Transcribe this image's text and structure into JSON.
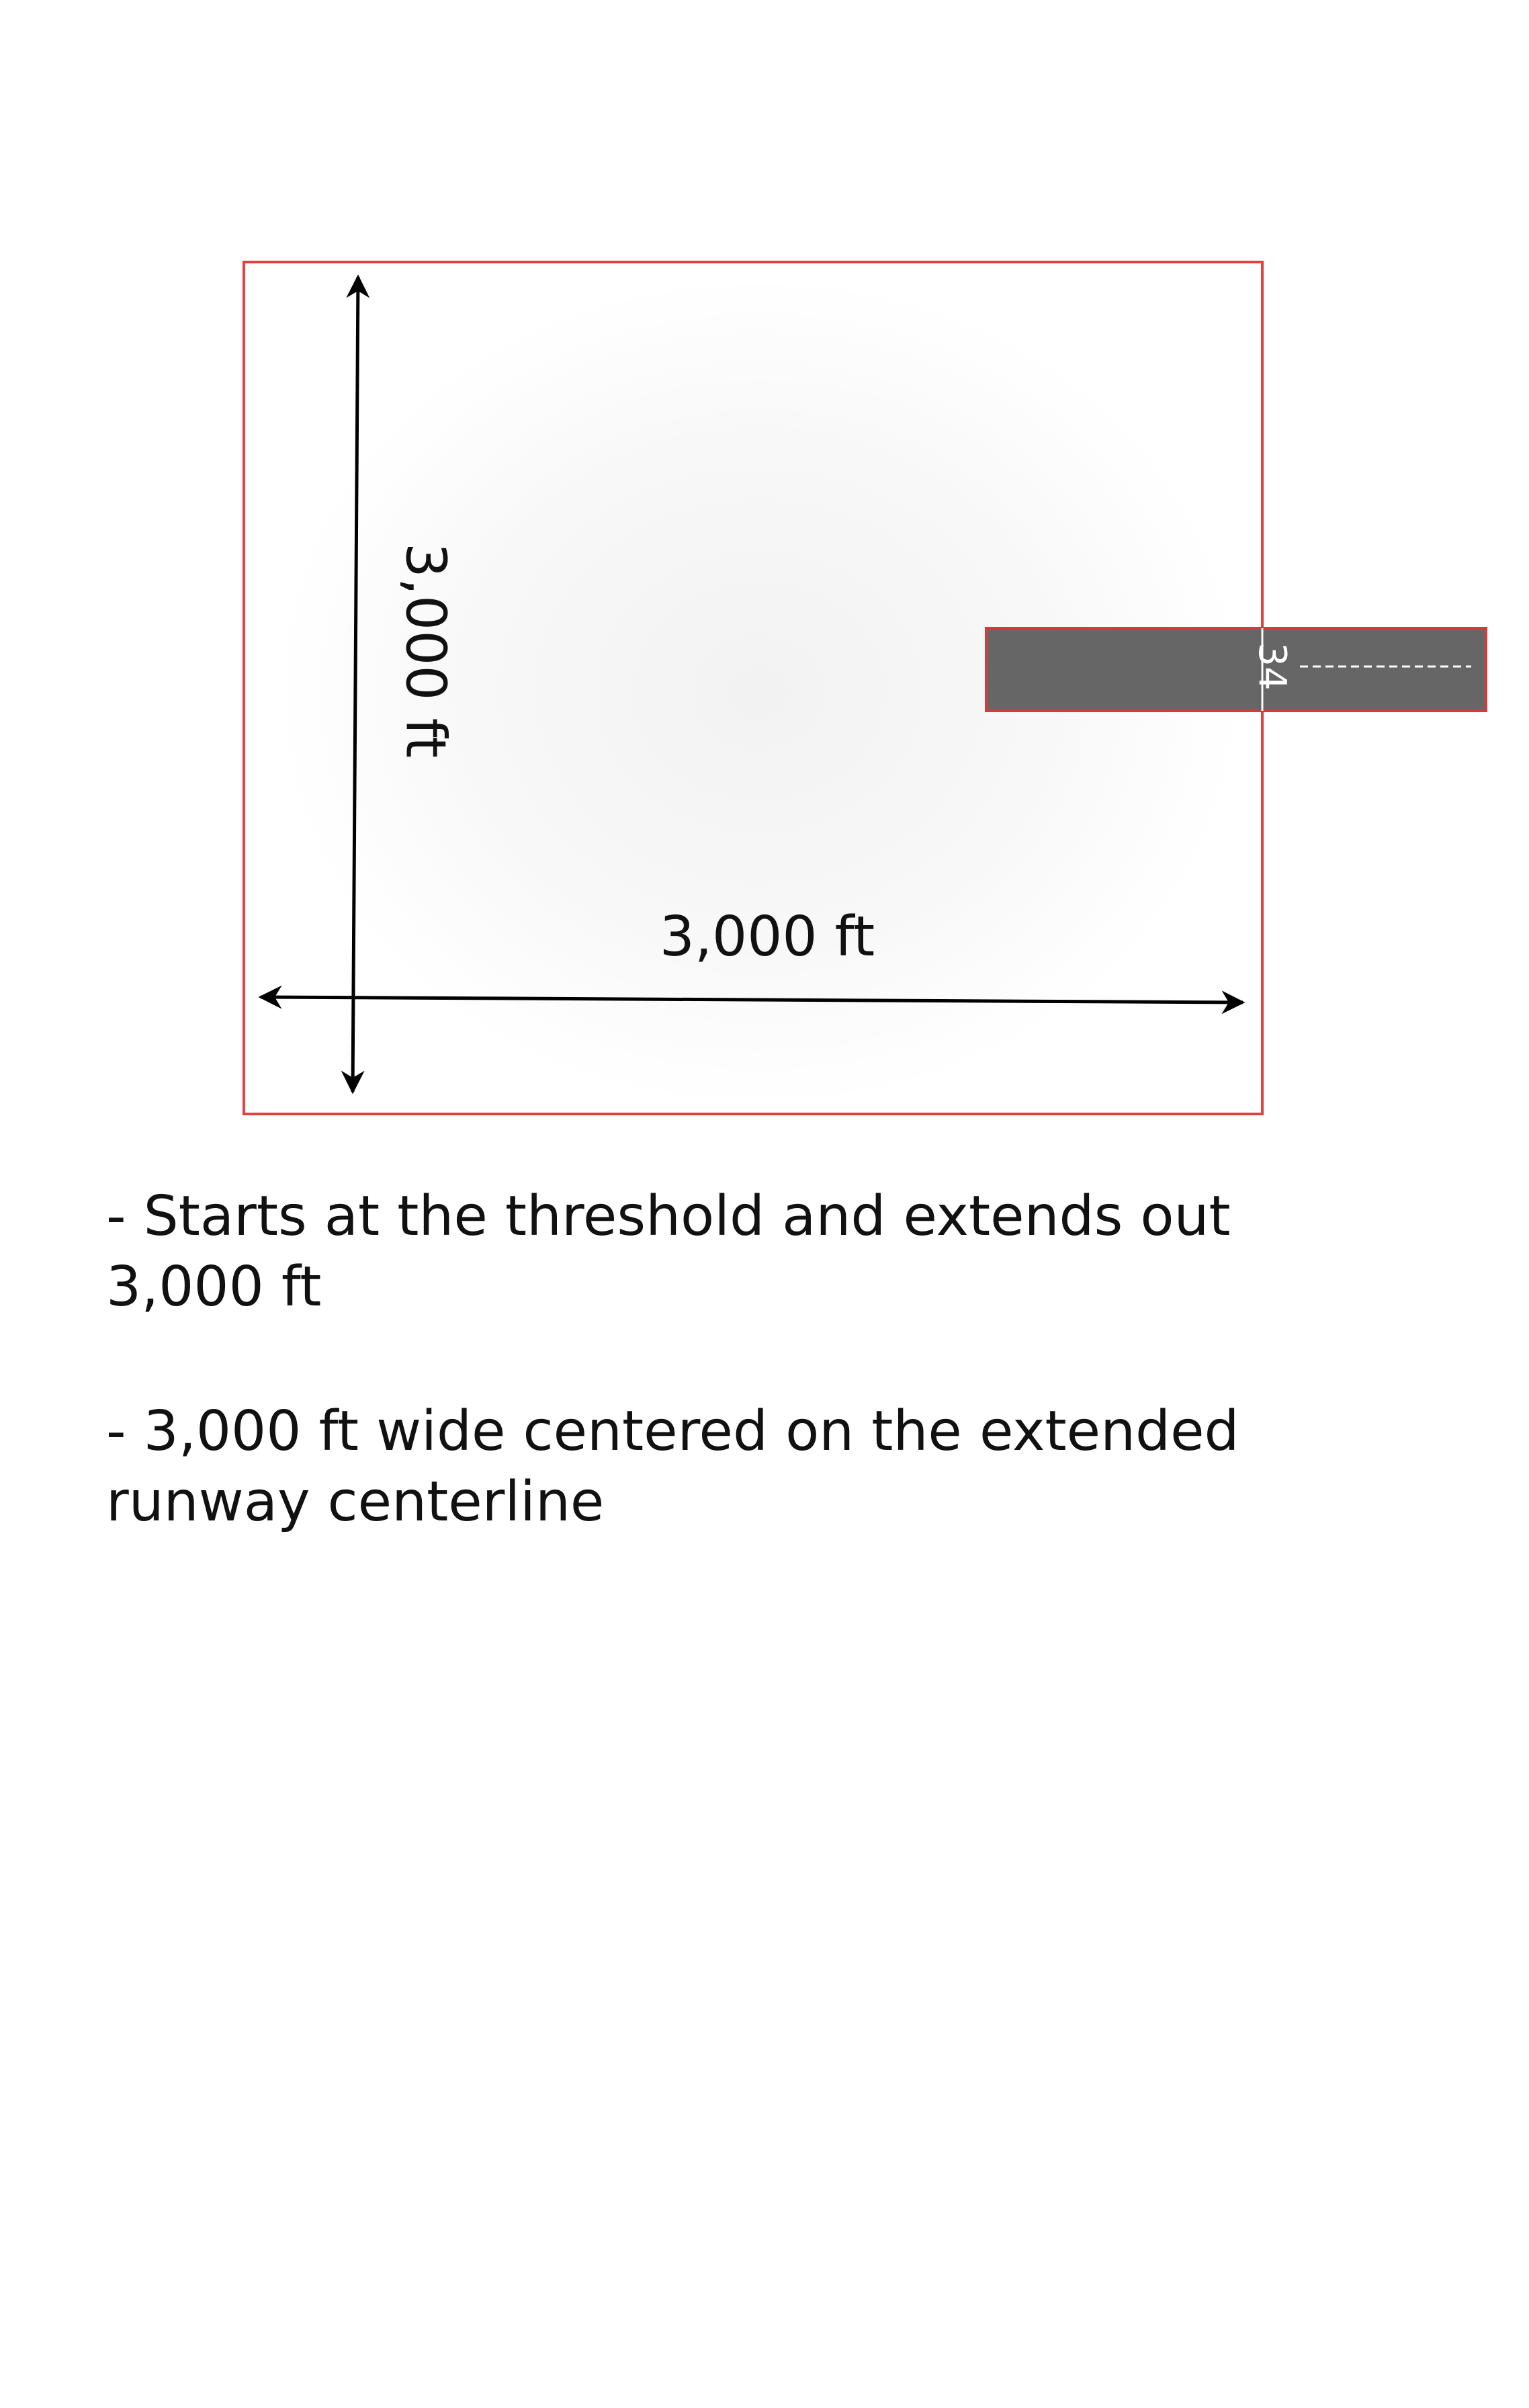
{
  "diagram": {
    "length_label": "3,000 ft",
    "width_label": "3,000 ft",
    "runway_number": "34",
    "colors": {
      "area_border": "#e34040",
      "runway_fill": "#666666",
      "runway_border": "#d63a3a",
      "arrow": "#000000"
    }
  },
  "notes": [
    "- Starts at the threshold and extends out 3,000 ft",
    "- 3,000 ft wide centered on the extended runway centerline"
  ]
}
